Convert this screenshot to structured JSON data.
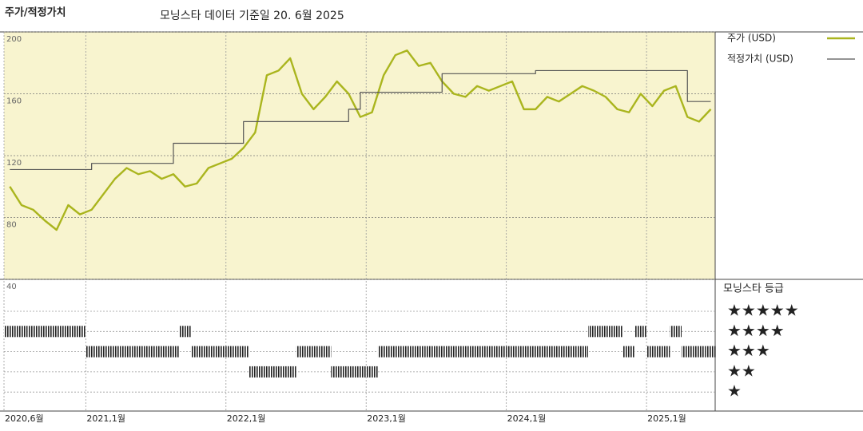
{
  "chart_data": {
    "type": "line",
    "title": "주가/적정가치",
    "subtitle": "모닝스타 데이터 기준일 20. 6월 2025",
    "x": [
      "2020-06",
      "2020-07",
      "2020-08",
      "2020-09",
      "2020-10",
      "2020-11",
      "2020-12",
      "2021-01",
      "2021-02",
      "2021-03",
      "2021-04",
      "2021-05",
      "2021-06",
      "2021-07",
      "2021-08",
      "2021-09",
      "2021-10",
      "2021-11",
      "2021-12",
      "2022-01",
      "2022-02",
      "2022-03",
      "2022-04",
      "2022-05",
      "2022-06",
      "2022-07",
      "2022-08",
      "2022-09",
      "2022-10",
      "2022-11",
      "2022-12",
      "2023-01",
      "2023-02",
      "2023-03",
      "2023-04",
      "2023-05",
      "2023-06",
      "2023-07",
      "2023-08",
      "2023-09",
      "2023-10",
      "2023-11",
      "2023-12",
      "2024-01",
      "2024-02",
      "2024-03",
      "2024-04",
      "2024-05",
      "2024-06",
      "2024-07",
      "2024-08",
      "2024-09",
      "2024-10",
      "2024-11",
      "2024-12",
      "2025-01",
      "2025-02",
      "2025-03",
      "2025-04",
      "2025-05",
      "2025-06"
    ],
    "xticks": [
      {
        "value": "2020-06",
        "label": "2020,6월"
      },
      {
        "value": "2021-01",
        "label": "2021,1월"
      },
      {
        "value": "2022-01",
        "label": "2022,1월"
      },
      {
        "value": "2023-01",
        "label": "2023,1월"
      },
      {
        "value": "2024-01",
        "label": "2024,1월"
      },
      {
        "value": "2025-01",
        "label": "2025,1월"
      }
    ],
    "ylim": [
      40,
      200
    ],
    "yticks": [
      40,
      80,
      120,
      160,
      200
    ],
    "grid": true,
    "series": [
      {
        "name": "주가 (USD)",
        "color": "#aab51e",
        "values": [
          100,
          88,
          85,
          78,
          72,
          88,
          82,
          85,
          95,
          105,
          112,
          108,
          110,
          105,
          108,
          100,
          102,
          112,
          115,
          118,
          125,
          135,
          172,
          175,
          183,
          160,
          150,
          158,
          168,
          160,
          145,
          148,
          172,
          185,
          188,
          178,
          180,
          168,
          160,
          158,
          165,
          162,
          165,
          168,
          150,
          150,
          158,
          155,
          160,
          165,
          162,
          158,
          150,
          148,
          160,
          152,
          162,
          165,
          145,
          142,
          150
        ]
      },
      {
        "name": "적정가치 (USD)",
        "color": "#555555",
        "step": true,
        "values": [
          111,
          111,
          111,
          111,
          111,
          111,
          111,
          115,
          115,
          115,
          115,
          115,
          115,
          115,
          128,
          128,
          128,
          128,
          128,
          128,
          142,
          142,
          142,
          142,
          142,
          142,
          142,
          142,
          142,
          150,
          161,
          161,
          161,
          161,
          161,
          161,
          161,
          173,
          173,
          173,
          173,
          173,
          173,
          173,
          173,
          175,
          175,
          175,
          175,
          175,
          175,
          175,
          175,
          175,
          175,
          175,
          175,
          175,
          155,
          155,
          155
        ]
      }
    ],
    "rating": {
      "title": "모닝스타 등급",
      "levels": [
        "★★★★★",
        "★★★★",
        "★★★",
        "★★",
        "★"
      ],
      "values": [
        4,
        4,
        4,
        4,
        4,
        4,
        4,
        3,
        3,
        3,
        3,
        3,
        3,
        3,
        3,
        4,
        3,
        3,
        3,
        3,
        3,
        2,
        2,
        2,
        2,
        3,
        3,
        3,
        2,
        2,
        2,
        2,
        3,
        3,
        3,
        3,
        3,
        3,
        3,
        3,
        3,
        3,
        3,
        3,
        3,
        3,
        3,
        3,
        3,
        3,
        4,
        4,
        4,
        3,
        4,
        3,
        3,
        4,
        3,
        3,
        3
      ]
    }
  }
}
